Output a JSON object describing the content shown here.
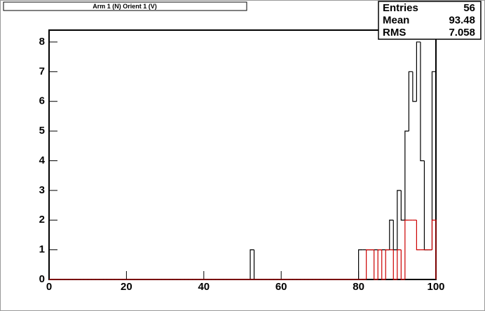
{
  "chart_data": {
    "type": "histogram",
    "title": "Arm 1 (N) Orient 1 (V)",
    "bins": [
      0,
      1,
      2,
      3,
      4,
      5,
      6,
      7,
      8,
      9,
      10,
      11,
      12,
      13,
      14,
      15,
      16,
      17,
      18,
      19,
      20,
      21,
      22,
      23,
      24,
      25,
      26,
      27,
      28,
      29,
      30,
      31,
      32,
      33,
      34,
      35,
      36,
      37,
      38,
      39,
      40,
      41,
      42,
      43,
      44,
      45,
      46,
      47,
      48,
      49,
      50,
      51,
      52,
      53,
      54,
      55,
      56,
      57,
      58,
      59,
      60,
      61,
      62,
      63,
      64,
      65,
      66,
      67,
      68,
      69,
      70,
      71,
      72,
      73,
      74,
      75,
      76,
      77,
      78,
      79,
      80,
      81,
      82,
      83,
      84,
      85,
      86,
      87,
      88,
      89,
      90,
      91,
      92,
      93,
      94,
      95,
      96,
      97,
      98,
      99,
      100
    ],
    "series": [
      {
        "color": "#000000",
        "values": [
          0,
          0,
          0,
          0,
          0,
          0,
          0,
          0,
          0,
          0,
          0,
          0,
          0,
          0,
          0,
          0,
          0,
          0,
          0,
          0,
          0,
          0,
          0,
          0,
          0,
          0,
          0,
          0,
          0,
          0,
          0,
          0,
          0,
          0,
          0,
          0,
          0,
          0,
          0,
          0,
          0,
          0,
          0,
          0,
          0,
          0,
          0,
          0,
          0,
          0,
          0,
          0,
          1,
          0,
          0,
          0,
          0,
          0,
          0,
          0,
          0,
          0,
          0,
          0,
          0,
          0,
          0,
          0,
          0,
          0,
          0,
          0,
          0,
          0,
          0,
          0,
          0,
          0,
          0,
          0,
          1,
          1,
          1,
          1,
          1,
          1,
          1,
          1,
          2,
          1,
          3,
          2,
          5,
          7,
          6,
          8,
          4,
          1,
          1,
          7
        ]
      },
      {
        "color": "#cc0000",
        "values": [
          0,
          0,
          0,
          0,
          0,
          0,
          0,
          0,
          0,
          0,
          0,
          0,
          0,
          0,
          0,
          0,
          0,
          0,
          0,
          0,
          0,
          0,
          0,
          0,
          0,
          0,
          0,
          0,
          0,
          0,
          0,
          0,
          0,
          0,
          0,
          0,
          0,
          0,
          0,
          0,
          0,
          0,
          0,
          0,
          0,
          0,
          0,
          0,
          0,
          0,
          0,
          0,
          0,
          0,
          0,
          0,
          0,
          0,
          0,
          0,
          0,
          0,
          0,
          0,
          0,
          0,
          0,
          0,
          0,
          0,
          0,
          0,
          0,
          0,
          0,
          0,
          0,
          0,
          0,
          0,
          0,
          0,
          1,
          1,
          0,
          1,
          0,
          1,
          1,
          0,
          1,
          0,
          2,
          2,
          2,
          1,
          1,
          1,
          1,
          2
        ]
      }
    ],
    "xlim": [
      0,
      100
    ],
    "xticks": [
      0,
      20,
      40,
      60,
      80,
      100
    ],
    "ylim": [
      0,
      8.4
    ],
    "yticks": [
      0,
      1,
      2,
      3,
      4,
      5,
      6,
      7,
      8
    ],
    "stats": [
      {
        "label": "Entries",
        "value": 56
      },
      {
        "label": "Mean",
        "value": 93.48
      },
      {
        "label": "RMS",
        "value": 7.058
      }
    ]
  }
}
